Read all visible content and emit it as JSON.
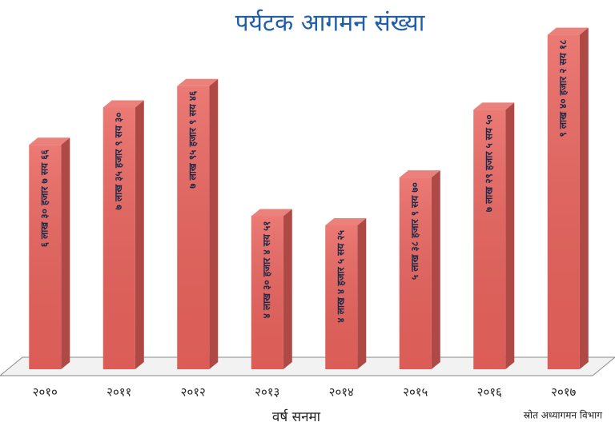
{
  "chart_data": {
    "type": "bar3d",
    "title": "पर्यटक आगमन संख्या",
    "x_label": "वर्ष सनमा",
    "source": "स्रोत अध्यागमन विभाग",
    "categories": [
      "२०१०",
      "२०११",
      "२०१२",
      "२०१३",
      "२०१४",
      "२०१५",
      "२०१६",
      "२०१७"
    ],
    "values": [
      630766,
      735930,
      795946,
      430451,
      404525,
      538970,
      729550,
      940218
    ],
    "value_labels": [
      "६ लाख ३० हजार ७ सय ६६",
      "७ लाख ३५ हजार ९ सय ३०",
      "७ लाख ९५ हजार ९ सय ४६",
      "४ लाख ३० हजार ४ सय ५१",
      "४ लाख ४ हजार ५ सय २५",
      "५ लाख ३८ हजार ९ सय ७०",
      "७ लाख २९ हजार ५ सय ५०",
      "९ लाख ४० हजार २ सय १८"
    ],
    "color": "#e8625c",
    "ylim": [
      0,
      1000000
    ]
  }
}
